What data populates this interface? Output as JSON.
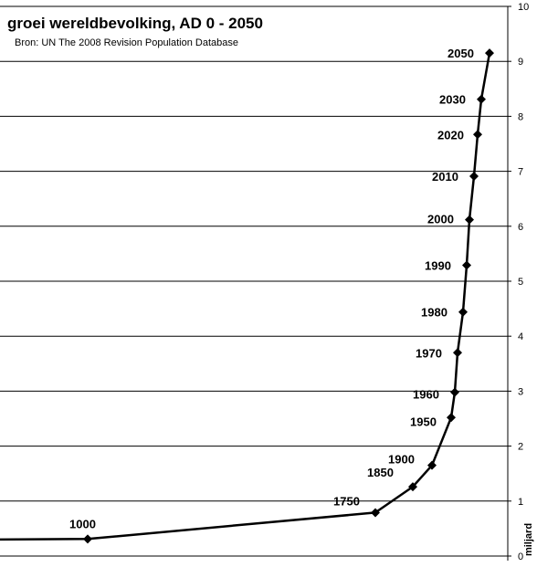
{
  "chart_data": {
    "type": "line",
    "title": "groei wereldbevolking, AD 0 - 2050",
    "subtitle": "Bron: UN The 2008 Revision Population Database",
    "ylabel": "miljard",
    "xlabel": "",
    "ylim": [
      0,
      10
    ],
    "y_ticks": [
      0,
      1,
      2,
      3,
      4,
      5,
      6,
      7,
      8,
      9,
      10
    ],
    "grid": true,
    "line_color": "#000000",
    "marker": "diamond",
    "series": [
      {
        "points": [
          {
            "x": 0,
            "y": 0.3,
            "label": ""
          },
          {
            "x": 1000,
            "y": 0.31,
            "label": "1000"
          },
          {
            "x": 1750,
            "y": 0.79,
            "label": "1750"
          },
          {
            "x": 1850,
            "y": 1.26,
            "label": "1850"
          },
          {
            "x": 1900,
            "y": 1.65,
            "label": "1900"
          },
          {
            "x": 1950,
            "y": 2.52,
            "label": "1950"
          },
          {
            "x": 1960,
            "y": 2.98,
            "label": "1960"
          },
          {
            "x": 1970,
            "y": 3.7,
            "label": "1970"
          },
          {
            "x": 1980,
            "y": 4.44,
            "label": "1980"
          },
          {
            "x": 1990,
            "y": 5.29,
            "label": "1990"
          },
          {
            "x": 2000,
            "y": 6.12,
            "label": "2000"
          },
          {
            "x": 2010,
            "y": 6.91,
            "label": "2010"
          },
          {
            "x": 2020,
            "y": 7.67,
            "label": "2020"
          },
          {
            "x": 2030,
            "y": 8.31,
            "label": "2030"
          },
          {
            "x": 2050,
            "y": 9.15,
            "label": "2050"
          }
        ]
      }
    ]
  }
}
